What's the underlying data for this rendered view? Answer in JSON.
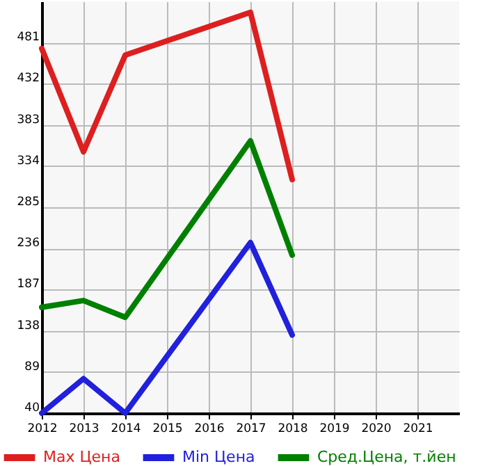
{
  "chart_data": {
    "type": "line",
    "x": [
      2012,
      2013,
      2014,
      2017,
      2018
    ],
    "series": [
      {
        "name": "Max Цена",
        "color": "#dd1f1f",
        "values": [
          474,
          351,
          466,
          517,
          318
        ]
      },
      {
        "name": "Min Цена",
        "color": "#2020dd",
        "values": [
          40,
          81,
          40,
          243,
          133
        ]
      },
      {
        "name": "Сред.Цена, т.йен",
        "color": "#008000",
        "values": [
          166,
          174,
          154,
          364,
          228
        ]
      }
    ],
    "xlim": [
      2012,
      2022
    ],
    "xticks": [
      2012,
      2013,
      2014,
      2015,
      2016,
      2017,
      2018,
      2019,
      2020,
      2021
    ],
    "ylim": [
      40,
      530
    ],
    "yticks": [
      40,
      89,
      138,
      187,
      236,
      285,
      334,
      383,
      432,
      481
    ],
    "grid": true,
    "legend": "bottom",
    "marker": "none",
    "line_style": "solid"
  }
}
